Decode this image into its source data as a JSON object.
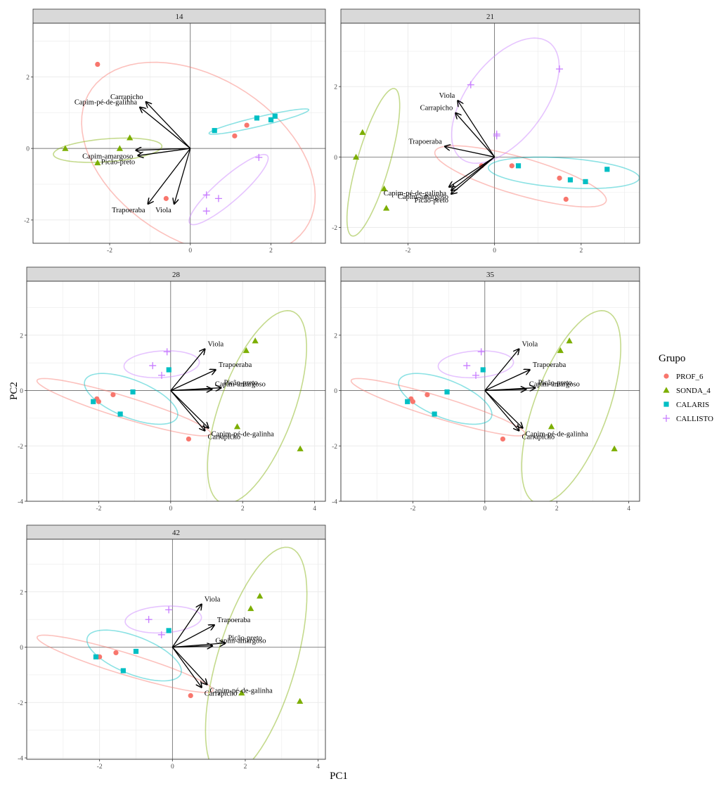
{
  "figure": {
    "xlabel": "PC1",
    "ylabel": "PC2",
    "legend_title": "Grupo",
    "legend_position": "right"
  },
  "groups": [
    {
      "name": "PROF_6",
      "label": "PROF_6",
      "color": "#F8766D",
      "shape": "circle"
    },
    {
      "name": "SONDA_4",
      "label": "SONDA_4",
      "color": "#7CAE00",
      "shape": "triangle"
    },
    {
      "name": "CALARIS",
      "label": "CALARIS",
      "color": "#00BFC4",
      "shape": "square"
    },
    {
      "name": "CALLISTO",
      "label": "CALLISTO",
      "color": "#C77CFF",
      "shape": "plus"
    }
  ],
  "chart_data": [
    {
      "type": "scatter",
      "panel": "14",
      "xlim": [
        -3.9,
        3.35
      ],
      "ylim": [
        -2.65,
        3.5
      ],
      "xticks": [
        -2,
        0,
        2
      ],
      "yticks": [
        -2,
        0,
        2
      ],
      "grid": true,
      "series": [
        {
          "group": "PROF_6",
          "points": [
            [
              -2.3,
              2.35
            ],
            [
              1.4,
              0.65
            ],
            [
              1.1,
              0.35
            ],
            [
              -0.6,
              -1.4
            ]
          ]
        },
        {
          "group": "SONDA_4",
          "points": [
            [
              -3.1,
              0.0
            ],
            [
              -1.5,
              0.3
            ],
            [
              -1.75,
              0.0
            ],
            [
              -2.3,
              -0.4
            ]
          ]
        },
        {
          "group": "CALARIS",
          "points": [
            [
              0.6,
              0.5
            ],
            [
              1.65,
              0.85
            ],
            [
              2.0,
              0.8
            ],
            [
              2.1,
              0.9
            ]
          ]
        },
        {
          "group": "CALLISTO",
          "points": [
            [
              1.7,
              -0.25
            ],
            [
              0.4,
              -1.3
            ],
            [
              0.7,
              -1.4
            ],
            [
              0.4,
              -1.75
            ]
          ]
        }
      ],
      "ellipses": [
        {
          "group": "PROF_6",
          "center": [
            0.2,
            -0.3
          ],
          "rx": 3.3,
          "ry": 2.2,
          "angle_deg": -40
        },
        {
          "group": "SONDA_4",
          "center": [
            -2.05,
            -0.05
          ],
          "rx": 1.35,
          "ry": 0.32,
          "angle_deg": 5
        },
        {
          "group": "CALARIS",
          "center": [
            1.7,
            0.75
          ],
          "rx": 1.28,
          "ry": 0.13,
          "angle_deg": 15
        },
        {
          "group": "CALLISTO",
          "center": [
            0.95,
            -1.15
          ],
          "rx": 1.35,
          "ry": 0.32,
          "angle_deg": 45
        }
      ],
      "vectors": [
        {
          "label": "Carrapicho",
          "x": -1.1,
          "y": 1.3
        },
        {
          "label": "Capim-pé-de-galinha",
          "x": -1.25,
          "y": 1.15
        },
        {
          "label": "Capim-amargoso",
          "x": -1.35,
          "y": -0.05
        },
        {
          "label": "Picão-preto",
          "x": -1.3,
          "y": -0.2
        },
        {
          "label": "Trapoeraba",
          "x": -1.05,
          "y": -1.55
        },
        {
          "label": "Viola",
          "x": -0.4,
          "y": -1.55
        }
      ]
    },
    {
      "type": "scatter",
      "panel": "21",
      "xlim": [
        -3.55,
        3.35
      ],
      "ylim": [
        -2.45,
        3.8
      ],
      "xticks": [
        -2,
        0,
        2
      ],
      "yticks": [
        -2,
        0,
        2
      ],
      "grid": true,
      "series": [
        {
          "group": "PROF_6",
          "points": [
            [
              0.4,
              -0.25
            ],
            [
              1.5,
              -0.6
            ],
            [
              1.65,
              -1.2
            ],
            [
              -0.3,
              -0.25
            ]
          ]
        },
        {
          "group": "SONDA_4",
          "points": [
            [
              -3.05,
              0.7
            ],
            [
              -3.2,
              0.0
            ],
            [
              -2.55,
              -0.9
            ],
            [
              -2.5,
              -1.45
            ]
          ]
        },
        {
          "group": "CALARIS",
          "points": [
            [
              0.55,
              -0.25
            ],
            [
              1.75,
              -0.65
            ],
            [
              2.1,
              -0.7
            ],
            [
              2.6,
              -0.35
            ]
          ]
        },
        {
          "group": "CALLISTO",
          "points": [
            [
              -0.55,
              2.05
            ],
            [
              1.5,
              2.5
            ],
            [
              0.05,
              0.65
            ],
            [
              0.05,
              0.6
            ]
          ]
        }
      ],
      "ellipses": [
        {
          "group": "PROF_6",
          "center": [
            0.6,
            -0.55
          ],
          "rx": 2.1,
          "ry": 0.52,
          "angle_deg": -20
        },
        {
          "group": "SONDA_4",
          "center": [
            -2.8,
            -0.15
          ],
          "rx": 2.15,
          "ry": 0.38,
          "angle_deg": 77
        },
        {
          "group": "CALARIS",
          "center": [
            1.6,
            -0.45
          ],
          "rx": 1.75,
          "ry": 0.42,
          "angle_deg": -5
        },
        {
          "group": "CALLISTO",
          "center": [
            0.25,
            1.6
          ],
          "rx": 1.95,
          "ry": 0.95,
          "angle_deg": 62
        }
      ],
      "vectors": [
        {
          "label": "Viola",
          "x": -0.85,
          "y": 1.6
        },
        {
          "label": "Carrapicho",
          "x": -0.9,
          "y": 1.25
        },
        {
          "label": "Trapoeraba",
          "x": -1.15,
          "y": 0.3
        },
        {
          "label": "Capim-pé-de-galinha",
          "x": -1.05,
          "y": -0.85
        },
        {
          "label": "Capim-amargoso",
          "x": -1.0,
          "y": -0.95
        },
        {
          "label": "Picão-preto",
          "x": -1.0,
          "y": -1.05
        }
      ]
    },
    {
      "type": "scatter",
      "panel": "28",
      "xlim": [
        -4.0,
        4.3
      ],
      "ylim": [
        -4.0,
        3.95
      ],
      "xticks": [
        -2,
        0,
        2,
        4
      ],
      "yticks": [
        -4,
        -2,
        0,
        2
      ],
      "grid": true,
      "series": [
        {
          "group": "PROF_6",
          "points": [
            [
              -2.05,
              -0.3
            ],
            [
              -2.0,
              -0.4
            ],
            [
              -1.6,
              -0.15
            ],
            [
              0.5,
              -1.75
            ]
          ]
        },
        {
          "group": "SONDA_4",
          "points": [
            [
              2.1,
              1.45
            ],
            [
              2.35,
              1.8
            ],
            [
              1.85,
              -1.3
            ],
            [
              3.6,
              -2.1
            ]
          ]
        },
        {
          "group": "CALARIS",
          "points": [
            [
              -2.15,
              -0.4
            ],
            [
              -1.4,
              -0.85
            ],
            [
              -1.05,
              -0.05
            ],
            [
              -0.05,
              0.75
            ]
          ]
        },
        {
          "group": "CALLISTO",
          "points": [
            [
              -0.5,
              0.9
            ],
            [
              -0.1,
              1.4
            ],
            [
              -0.25,
              0.55
            ]
          ]
        }
      ],
      "ellipses": [
        {
          "group": "PROF_6",
          "center": [
            -1.3,
            -0.6
          ],
          "rx": 2.6,
          "ry": 0.38,
          "angle_deg": -22
        },
        {
          "group": "SONDA_4",
          "center": [
            2.4,
            -0.6
          ],
          "rx": 3.6,
          "ry": 1.05,
          "angle_deg": 75
        },
        {
          "group": "CALARIS",
          "center": [
            -1.1,
            -0.3
          ],
          "rx": 1.45,
          "ry": 0.65,
          "angle_deg": -30
        },
        {
          "group": "CALLISTO",
          "center": [
            -0.25,
            0.95
          ],
          "rx": 1.05,
          "ry": 0.48,
          "angle_deg": 5
        }
      ],
      "vectors": [
        {
          "label": "Viola",
          "x": 0.95,
          "y": 1.5
        },
        {
          "label": "Trapoeraba",
          "x": 1.25,
          "y": 0.75
        },
        {
          "label": "Picão-preto",
          "x": 1.4,
          "y": 0.1
        },
        {
          "label": "Capim-amargoso",
          "x": 1.15,
          "y": 0.05
        },
        {
          "label": "Capim-pé-de-galinha",
          "x": 1.05,
          "y": -1.35
        },
        {
          "label": "Carrapicho",
          "x": 0.95,
          "y": -1.45
        }
      ]
    },
    {
      "type": "scatter",
      "panel": "35",
      "xlim": [
        -4.0,
        4.3
      ],
      "ylim": [
        -4.0,
        3.95
      ],
      "xticks": [
        -2,
        0,
        2,
        4
      ],
      "yticks": [
        -4,
        -2,
        0,
        2
      ],
      "grid": true,
      "series": [
        {
          "group": "PROF_6",
          "points": [
            [
              -2.05,
              -0.3
            ],
            [
              -2.0,
              -0.4
            ],
            [
              -1.6,
              -0.15
            ],
            [
              0.5,
              -1.75
            ]
          ]
        },
        {
          "group": "SONDA_4",
          "points": [
            [
              2.1,
              1.45
            ],
            [
              2.35,
              1.8
            ],
            [
              1.85,
              -1.3
            ],
            [
              3.6,
              -2.1
            ]
          ]
        },
        {
          "group": "CALARIS",
          "points": [
            [
              -2.15,
              -0.4
            ],
            [
              -1.4,
              -0.85
            ],
            [
              -1.05,
              -0.05
            ],
            [
              -0.05,
              0.75
            ]
          ]
        },
        {
          "group": "CALLISTO",
          "points": [
            [
              -0.5,
              0.9
            ],
            [
              -0.1,
              1.4
            ],
            [
              -0.25,
              0.55
            ]
          ]
        }
      ],
      "ellipses": [
        {
          "group": "PROF_6",
          "center": [
            -1.3,
            -0.6
          ],
          "rx": 2.6,
          "ry": 0.38,
          "angle_deg": -22
        },
        {
          "group": "SONDA_4",
          "center": [
            2.4,
            -0.6
          ],
          "rx": 3.6,
          "ry": 1.05,
          "angle_deg": 75
        },
        {
          "group": "CALARIS",
          "center": [
            -1.1,
            -0.3
          ],
          "rx": 1.45,
          "ry": 0.65,
          "angle_deg": -30
        },
        {
          "group": "CALLISTO",
          "center": [
            -0.25,
            0.95
          ],
          "rx": 1.05,
          "ry": 0.48,
          "angle_deg": 5
        }
      ],
      "vectors": [
        {
          "label": "Viola",
          "x": 0.95,
          "y": 1.5
        },
        {
          "label": "Trapoeraba",
          "x": 1.25,
          "y": 0.75
        },
        {
          "label": "Picão-preto",
          "x": 1.4,
          "y": 0.1
        },
        {
          "label": "Capim-amargoso",
          "x": 1.15,
          "y": 0.05
        },
        {
          "label": "Capim-pé-de-galinha",
          "x": 1.05,
          "y": -1.35
        },
        {
          "label": "Carrapicho",
          "x": 0.95,
          "y": -1.45
        }
      ]
    },
    {
      "type": "scatter",
      "panel": "42",
      "xlim": [
        -4.0,
        4.2
      ],
      "ylim": [
        -4.05,
        3.9
      ],
      "xticks": [
        -2,
        0,
        2,
        4
      ],
      "yticks": [
        -4,
        -2,
        0,
        2
      ],
      "grid": true,
      "series": [
        {
          "group": "PROF_6",
          "points": [
            [
              -2.0,
              -0.35
            ],
            [
              -2.05,
              -0.35
            ],
            [
              -1.55,
              -0.2
            ],
            [
              0.5,
              -1.75
            ]
          ]
        },
        {
          "group": "SONDA_4",
          "points": [
            [
              2.15,
              1.4
            ],
            [
              2.4,
              1.85
            ],
            [
              1.9,
              -1.65
            ],
            [
              3.5,
              -1.95
            ]
          ]
        },
        {
          "group": "CALARIS",
          "points": [
            [
              -2.1,
              -0.35
            ],
            [
              -1.35,
              -0.85
            ],
            [
              -1.0,
              -0.15
            ],
            [
              -0.1,
              0.6
            ]
          ]
        },
        {
          "group": "CALLISTO",
          "points": [
            [
              -0.65,
              1.0
            ],
            [
              -0.1,
              1.35
            ],
            [
              -0.3,
              0.45
            ]
          ]
        }
      ],
      "ellipses": [
        {
          "group": "PROF_6",
          "center": [
            -1.3,
            -0.6
          ],
          "rx": 2.6,
          "ry": 0.38,
          "angle_deg": -22
        },
        {
          "group": "SONDA_4",
          "center": [
            2.3,
            -0.55
          ],
          "rx": 4.25,
          "ry": 1.1,
          "angle_deg": 78
        },
        {
          "group": "CALARIS",
          "center": [
            -1.05,
            -0.3
          ],
          "rx": 1.45,
          "ry": 0.65,
          "angle_deg": -30
        },
        {
          "group": "CALLISTO",
          "center": [
            -0.25,
            1.0
          ],
          "rx": 1.05,
          "ry": 0.48,
          "angle_deg": 5
        }
      ],
      "vectors": [
        {
          "label": "Viola",
          "x": 0.8,
          "y": 1.55
        },
        {
          "label": "Trapoeraba",
          "x": 1.15,
          "y": 0.8
        },
        {
          "label": "Picão-preto",
          "x": 1.45,
          "y": 0.15
        },
        {
          "label": "Capim-amargoso",
          "x": 1.1,
          "y": 0.05
        },
        {
          "label": "Capim-pé-de-galinha",
          "x": 0.95,
          "y": -1.35
        },
        {
          "label": "Carrapicho",
          "x": 0.8,
          "y": -1.45
        }
      ]
    }
  ]
}
